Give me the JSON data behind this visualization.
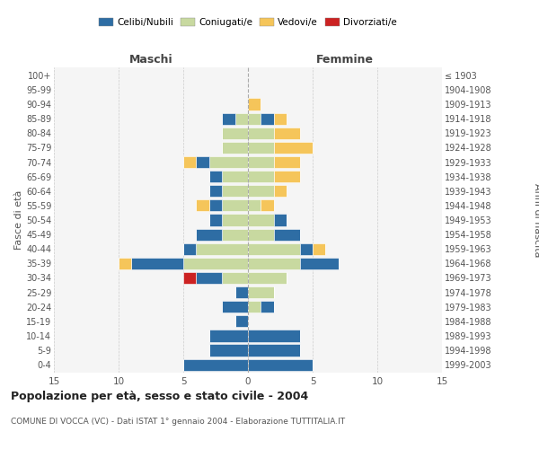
{
  "age_groups": [
    "0-4",
    "5-9",
    "10-14",
    "15-19",
    "20-24",
    "25-29",
    "30-34",
    "35-39",
    "40-44",
    "45-49",
    "50-54",
    "55-59",
    "60-64",
    "65-69",
    "70-74",
    "75-79",
    "80-84",
    "85-89",
    "90-94",
    "95-99",
    "100+"
  ],
  "birth_years": [
    "1999-2003",
    "1994-1998",
    "1989-1993",
    "1984-1988",
    "1979-1983",
    "1974-1978",
    "1969-1973",
    "1964-1968",
    "1959-1963",
    "1954-1958",
    "1949-1953",
    "1944-1948",
    "1939-1943",
    "1934-1938",
    "1929-1933",
    "1924-1928",
    "1919-1923",
    "1914-1918",
    "1909-1913",
    "1904-1908",
    "≤ 1903"
  ],
  "male": {
    "celibi": [
      5,
      3,
      3,
      1,
      2,
      1,
      2,
      4,
      1,
      2,
      1,
      1,
      1,
      1,
      1,
      0,
      0,
      1,
      0,
      0,
      0
    ],
    "coniugati": [
      0,
      0,
      0,
      0,
      0,
      0,
      2,
      5,
      4,
      2,
      2,
      2,
      2,
      2,
      3,
      2,
      2,
      1,
      0,
      0,
      0
    ],
    "vedovi": [
      0,
      0,
      0,
      0,
      0,
      0,
      0,
      1,
      0,
      0,
      0,
      1,
      0,
      0,
      1,
      0,
      0,
      0,
      0,
      0,
      0
    ],
    "divorziati": [
      0,
      0,
      0,
      0,
      0,
      0,
      1,
      0,
      0,
      0,
      0,
      0,
      0,
      0,
      0,
      0,
      0,
      0,
      0,
      0,
      0
    ]
  },
  "female": {
    "nubili": [
      5,
      4,
      4,
      0,
      1,
      0,
      0,
      3,
      1,
      2,
      1,
      0,
      0,
      0,
      0,
      0,
      0,
      1,
      0,
      0,
      0
    ],
    "coniugate": [
      0,
      0,
      0,
      0,
      1,
      2,
      3,
      4,
      4,
      2,
      2,
      1,
      2,
      2,
      2,
      2,
      2,
      1,
      0,
      0,
      0
    ],
    "vedove": [
      0,
      0,
      0,
      0,
      0,
      0,
      0,
      0,
      1,
      0,
      0,
      1,
      1,
      2,
      2,
      3,
      2,
      1,
      1,
      0,
      0
    ],
    "divorziate": [
      0,
      0,
      0,
      0,
      0,
      0,
      0,
      0,
      0,
      0,
      0,
      0,
      0,
      0,
      0,
      0,
      0,
      0,
      0,
      0,
      0
    ]
  },
  "colors": {
    "celibi_nubili": "#2E6DA4",
    "coniugati": "#C8D9A0",
    "vedovi": "#F5C55A",
    "divorziati": "#CC2222"
  },
  "xlim": 15,
  "title": "Popolazione per età, sesso e stato civile - 2004",
  "subtitle": "COMUNE DI VOCCA (VC) - Dati ISTAT 1° gennaio 2004 - Elaborazione TUTTITALIA.IT",
  "ylabel": "Fasce di età",
  "ylabel_right": "Anni di nascita",
  "xlabel_left": "Maschi",
  "xlabel_right": "Femmine",
  "legend_labels": [
    "Celibi/Nubili",
    "Coniugati/e",
    "Vedovi/e",
    "Divorziati/e"
  ],
  "bg_color": "#f5f5f5",
  "grid_color": "#cccccc"
}
